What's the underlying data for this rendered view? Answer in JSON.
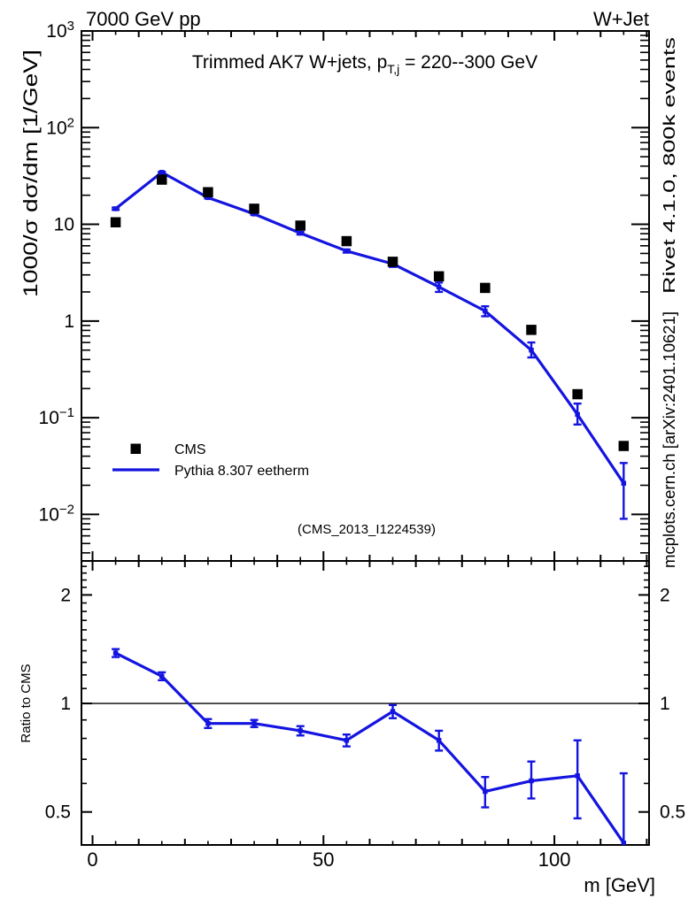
{
  "header": {
    "left": "7000 GeV pp",
    "right": "W+Jet"
  },
  "side_notes": {
    "top": "Rivet 4.1.0,  800k events",
    "bottom": "mcplots.cern.ch [arXiv:2401.10621]"
  },
  "watermark": "(CMS_2013_I1224539)",
  "colors": {
    "mc_blue": "#1414e0",
    "data_black": "#000000",
    "frame": "#000000",
    "side_text": "#8c8c8c",
    "watermark": "#b2b2b2"
  },
  "legend": {
    "items": [
      {
        "label": "CMS",
        "swatch": "square",
        "color": "#000000"
      },
      {
        "label": "Pythia 8.307 eetherm",
        "swatch": "line",
        "color": "#1414e0"
      }
    ]
  },
  "chart_data": [
    {
      "id": "main",
      "type": "scatter",
      "title": {
        "pre": "Trimmed AK7 W+jets, p",
        "sub": "T,j",
        "post": " = 220--300 GeV"
      },
      "ylabel": "1000/σ  dσ/dm [1/GeV]",
      "yscale": "log",
      "ylim": [
        0.0033,
        1000
      ],
      "xlim": [
        -2.4,
        120.5
      ],
      "yticks": [
        {
          "v": 1000,
          "mant": "10",
          "exp": "3"
        },
        {
          "v": 100,
          "mant": "10",
          "exp": "2"
        },
        {
          "v": 10,
          "mant": "10",
          "exp": ""
        },
        {
          "v": 1,
          "mant": "1",
          "exp": ""
        },
        {
          "v": 0.1,
          "mant": "10",
          "exp": "−1"
        },
        {
          "v": 0.01,
          "mant": "10",
          "exp": "−2"
        }
      ],
      "x": [
        5,
        15,
        25,
        35,
        45,
        55,
        65,
        75,
        85,
        95,
        105,
        115
      ],
      "series": [
        {
          "name": "CMS",
          "style": "markers",
          "marker": "square",
          "color": "#000000",
          "values": [
            10.5,
            29,
            21.5,
            14.5,
            9.7,
            6.7,
            4.1,
            2.9,
            2.2,
            0.81,
            0.175,
            0.051
          ]
        },
        {
          "name": "Pythia 8.307 eetherm",
          "style": "line+markers",
          "color": "#1414e0",
          "values": [
            14.5,
            34.5,
            18.9,
            12.8,
            8.1,
            5.3,
            3.9,
            2.25,
            1.27,
            0.5,
            0.108,
            0.021
          ],
          "err_lo": [
            0.4,
            0.5,
            0.4,
            0.3,
            0.25,
            0.2,
            0.27,
            0.25,
            0.15,
            0.08,
            0.023,
            0.012
          ],
          "err_hi": [
            0.4,
            0.5,
            0.4,
            0.3,
            0.25,
            0.2,
            0.27,
            0.25,
            0.15,
            0.1,
            0.032,
            0.013
          ]
        }
      ]
    },
    {
      "id": "ratio",
      "type": "line",
      "ylabel": "Ratio to CMS",
      "xlabel": "m [GeV]",
      "yscale": "log",
      "ylim": [
        0.405,
        2.485
      ],
      "xlim": [
        -2.4,
        120.5
      ],
      "refline": 1,
      "yticks": [
        {
          "v": 2,
          "label": "2"
        },
        {
          "v": 1,
          "label": "1"
        },
        {
          "v": 0.5,
          "label": "0.5"
        }
      ],
      "yminor": [
        0.6,
        0.7,
        0.8,
        0.9,
        1.1,
        1.2,
        1.3,
        1.4,
        1.5,
        1.6,
        1.7,
        1.8,
        1.9,
        2.1,
        2.2,
        2.3,
        2.4
      ],
      "xticks": [
        {
          "v": 0,
          "label": "0"
        },
        {
          "v": 50,
          "label": "50"
        },
        {
          "v": 100,
          "label": "100"
        }
      ],
      "x": [
        5,
        15,
        25,
        35,
        45,
        55,
        65,
        75,
        85,
        95,
        105,
        115
      ],
      "series": [
        {
          "name": "Pythia 8.307 eetherm / CMS",
          "style": "line+markers",
          "color": "#1414e0",
          "values": [
            1.38,
            1.19,
            0.88,
            0.88,
            0.84,
            0.79,
            0.95,
            0.79,
            0.57,
            0.61,
            0.63,
            0.41
          ],
          "err_lo": [
            0.035,
            0.03,
            0.025,
            0.02,
            0.025,
            0.03,
            0.04,
            0.05,
            0.055,
            0.065,
            0.15,
            0.11
          ],
          "err_hi": [
            0.035,
            0.03,
            0.025,
            0.02,
            0.025,
            0.03,
            0.04,
            0.05,
            0.055,
            0.08,
            0.16,
            0.23
          ]
        }
      ]
    }
  ]
}
